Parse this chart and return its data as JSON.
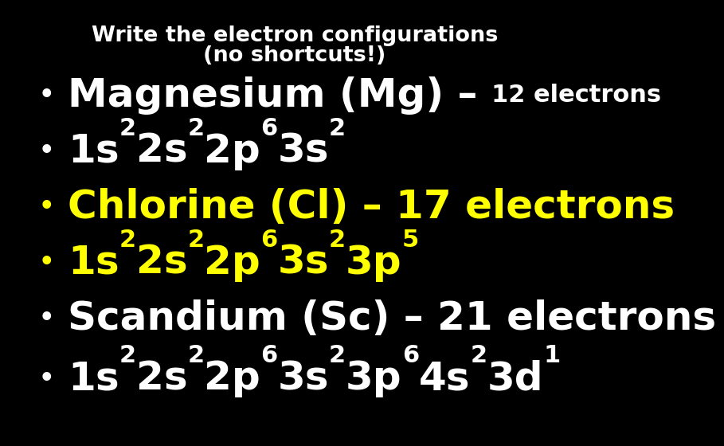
{
  "background_color": "#000000",
  "title_line1": "Write the electron configurations",
  "title_line2": "(no shortcuts!)",
  "title_color": "#ffffff",
  "title_fontsize": 19.5,
  "title_fontfamily": "DejaVu Sans",
  "title_fontweight": "bold",
  "bullet_symbol": "•",
  "bullet_color_white": "#ffffff",
  "bullet_color_yellow": "#ffff00",
  "white": "#ffffff",
  "yellow": "#ffff00",
  "rows": [
    {
      "color": "#ffffff",
      "segments": [
        {
          "t": "Magnesium (Mg) – ",
          "sup": false,
          "size": 36
        },
        {
          "t": "12 electrons",
          "sup": false,
          "size": 22
        }
      ]
    },
    {
      "color": "#ffffff",
      "segments": [
        {
          "t": "1s",
          "sup": false,
          "size": 36
        },
        {
          "t": "2",
          "sup": true,
          "size": 22
        },
        {
          "t": "2s",
          "sup": false,
          "size": 36
        },
        {
          "t": "2",
          "sup": true,
          "size": 22
        },
        {
          "t": "2p",
          "sup": false,
          "size": 36
        },
        {
          "t": "6",
          "sup": true,
          "size": 22
        },
        {
          "t": "3s",
          "sup": false,
          "size": 36
        },
        {
          "t": "2",
          "sup": true,
          "size": 22
        }
      ]
    },
    {
      "color": "#ffff00",
      "segments": [
        {
          "t": "Chlorine (Cl) – 17 electrons",
          "sup": false,
          "size": 36
        }
      ]
    },
    {
      "color": "#ffff00",
      "segments": [
        {
          "t": "1s",
          "sup": false,
          "size": 36
        },
        {
          "t": "2",
          "sup": true,
          "size": 22
        },
        {
          "t": "2s",
          "sup": false,
          "size": 36
        },
        {
          "t": "2",
          "sup": true,
          "size": 22
        },
        {
          "t": "2p",
          "sup": false,
          "size": 36
        },
        {
          "t": "6",
          "sup": true,
          "size": 22
        },
        {
          "t": "3s",
          "sup": false,
          "size": 36
        },
        {
          "t": "2",
          "sup": true,
          "size": 22
        },
        {
          "t": "3p",
          "sup": false,
          "size": 36
        },
        {
          "t": "5",
          "sup": true,
          "size": 22
        }
      ]
    },
    {
      "color": "#ffffff",
      "segments": [
        {
          "t": "Scandium (Sc) – 21 electrons",
          "sup": false,
          "size": 36
        }
      ]
    },
    {
      "color": "#ffffff",
      "segments": [
        {
          "t": "1s",
          "sup": false,
          "size": 36
        },
        {
          "t": "2",
          "sup": true,
          "size": 22
        },
        {
          "t": "2s",
          "sup": false,
          "size": 36
        },
        {
          "t": "2",
          "sup": true,
          "size": 22
        },
        {
          "t": "2p",
          "sup": false,
          "size": 36
        },
        {
          "t": "6",
          "sup": true,
          "size": 22
        },
        {
          "t": "3s",
          "sup": false,
          "size": 36
        },
        {
          "t": "2",
          "sup": true,
          "size": 22
        },
        {
          "t": "3p",
          "sup": false,
          "size": 36
        },
        {
          "t": "6",
          "sup": true,
          "size": 22
        },
        {
          "t": "4s",
          "sup": false,
          "size": 36
        },
        {
          "t": "2",
          "sup": true,
          "size": 22
        },
        {
          "t": "3d",
          "sup": false,
          "size": 36
        },
        {
          "t": "1",
          "sup": true,
          "size": 22
        }
      ]
    }
  ]
}
